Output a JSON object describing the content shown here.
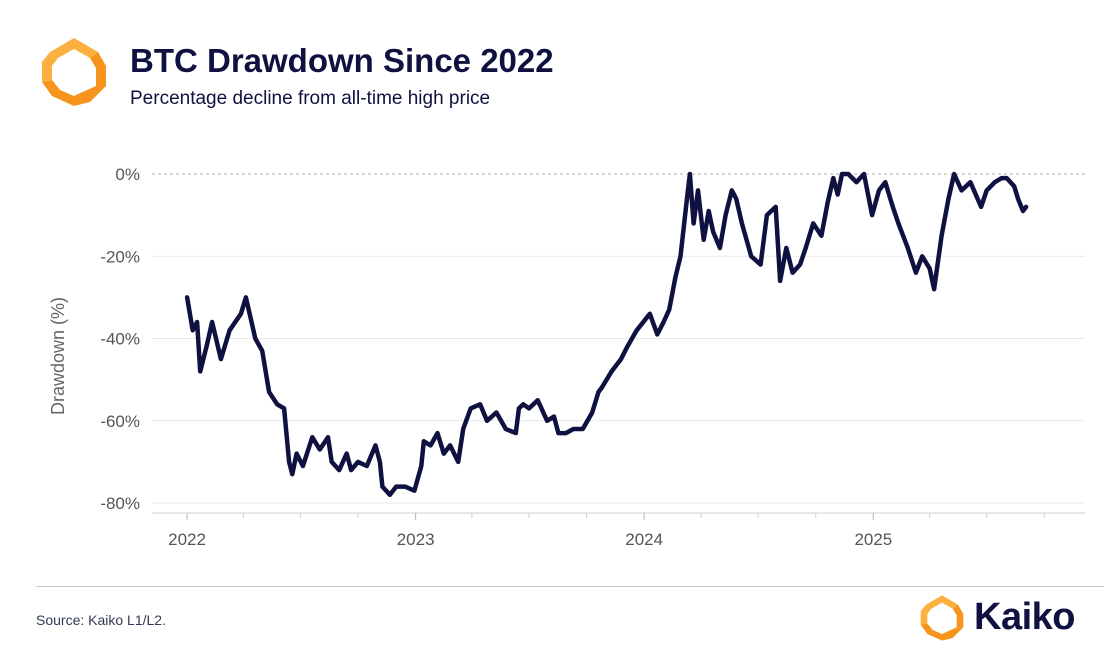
{
  "header": {
    "title": "BTC Drawdown Since 2022",
    "subtitle": "Percentage decline from all-time high price"
  },
  "footer": {
    "source": "Source: Kaiko L1/L2.",
    "brand": "Kaiko"
  },
  "colors": {
    "line": "#0f1140",
    "logo_orange": "#f7941d",
    "logo_yellow": "#fbb040",
    "grid": "#e9e9e9",
    "zero_line": "#b0b0b0"
  },
  "chart_data": {
    "type": "line",
    "title": "BTC Drawdown Since 2022",
    "subtitle": "Percentage decline from all-time high price",
    "xlabel": "",
    "ylabel": "Drawdown (%)",
    "ylim": [
      -80,
      0
    ],
    "yticks": [
      0,
      -20,
      -40,
      -60,
      -80
    ],
    "ytick_labels": [
      "0%",
      "-20%",
      "-40%",
      "-60%",
      "-80%"
    ],
    "xticks": [
      "2022-01-01",
      "2023-01-01",
      "2024-01-01",
      "2025-01-01"
    ],
    "xtick_labels": [
      "2022",
      "2023",
      "2024",
      "2025"
    ],
    "xlim": [
      "2021-11-06",
      "2025-12-05"
    ],
    "grid": true,
    "legend": "none",
    "series": [
      {
        "x": [
          "2022-01-01",
          "2022-01-10",
          "2022-01-17",
          "2022-01-22",
          "2022-02-01",
          "2022-02-10",
          "2022-02-24",
          "2022-03-10",
          "2022-03-28",
          "2022-04-05",
          "2022-04-20",
          "2022-05-01",
          "2022-05-12",
          "2022-05-25",
          "2022-06-05",
          "2022-06-13",
          "2022-06-18",
          "2022-06-25",
          "2022-07-05",
          "2022-07-20",
          "2022-08-01",
          "2022-08-14",
          "2022-08-20",
          "2022-09-01",
          "2022-09-13",
          "2022-09-20",
          "2022-10-01",
          "2022-10-15",
          "2022-10-29",
          "2022-11-05",
          "2022-11-09",
          "2022-11-21",
          "2022-12-01",
          "2022-12-15",
          "2022-12-30",
          "2023-01-10",
          "2023-01-14",
          "2023-01-25",
          "2023-02-05",
          "2023-02-15",
          "2023-02-25",
          "2023-03-10",
          "2023-03-18",
          "2023-03-30",
          "2023-04-14",
          "2023-04-25",
          "2023-05-10",
          "2023-05-25",
          "2023-06-10",
          "2023-06-15",
          "2023-06-22",
          "2023-07-01",
          "2023-07-15",
          "2023-07-30",
          "2023-08-10",
          "2023-08-17",
          "2023-08-29",
          "2023-09-10",
          "2023-09-25",
          "2023-10-10",
          "2023-10-20",
          "2023-10-25",
          "2023-11-10",
          "2023-11-25",
          "2023-12-05",
          "2023-12-20",
          "2024-01-10",
          "2024-01-22",
          "2024-02-01",
          "2024-02-10",
          "2024-02-20",
          "2024-02-28",
          "2024-03-05",
          "2024-03-10",
          "2024-03-14",
          "2024-03-20",
          "2024-03-27",
          "2024-04-05",
          "2024-04-13",
          "2024-04-20",
          "2024-05-01",
          "2024-05-10",
          "2024-05-20",
          "2024-05-27",
          "2024-06-05",
          "2024-06-20",
          "2024-07-05",
          "2024-07-15",
          "2024-07-29",
          "2024-08-05",
          "2024-08-15",
          "2024-08-25",
          "2024-09-06",
          "2024-09-15",
          "2024-09-27",
          "2024-10-10",
          "2024-10-20",
          "2024-10-29",
          "2024-11-05",
          "2024-11-12",
          "2024-11-22",
          "2024-12-05",
          "2024-12-17",
          "2024-12-30",
          "2025-01-10",
          "2025-01-20",
          "2025-02-01",
          "2025-02-10",
          "2025-02-25",
          "2025-03-10",
          "2025-03-20",
          "2025-04-01",
          "2025-04-08",
          "2025-04-20",
          "2025-05-01",
          "2025-05-10",
          "2025-05-22",
          "2025-06-05",
          "2025-06-22",
          "2025-07-01",
          "2025-07-14",
          "2025-07-25",
          "2025-08-02",
          "2025-08-14",
          "2025-08-20",
          "2025-08-28",
          "2025-09-02"
        ],
        "y": [
          -30,
          -38,
          -36,
          -48,
          -42,
          -36,
          -45,
          -38,
          -34,
          -30,
          -40,
          -43,
          -53,
          -56,
          -57,
          -70,
          -73,
          -68,
          -71,
          -64,
          -67,
          -64,
          -70,
          -72,
          -68,
          -72,
          -70,
          -71,
          -66,
          -70,
          -76,
          -78,
          -76,
          -76,
          -77,
          -71,
          -65,
          -66,
          -63,
          -68,
          -66,
          -70,
          -62,
          -57,
          -56,
          -60,
          -58,
          -62,
          -63,
          -57,
          -56,
          -57,
          -55,
          -60,
          -59,
          -63,
          -63,
          -62,
          -62,
          -58,
          -53,
          -52,
          -48,
          -45,
          -42,
          -38,
          -34,
          -39,
          -36,
          -33,
          -25,
          -20,
          -12,
          -5,
          0,
          -12,
          -4,
          -16,
          -9,
          -14,
          -18,
          -10,
          -4,
          -6,
          -12,
          -20,
          -22,
          -10,
          -8,
          -26,
          -18,
          -24,
          -22,
          -18,
          -12,
          -15,
          -7,
          -1,
          -5,
          0,
          0,
          -2,
          0,
          -10,
          -4,
          -2,
          -8,
          -12,
          -18,
          -24,
          -20,
          -23,
          -28,
          -15,
          -6,
          0,
          -4,
          -2,
          -8,
          -4,
          -2,
          -1,
          -1,
          -3,
          -6,
          -9,
          -8
        ]
      }
    ]
  }
}
